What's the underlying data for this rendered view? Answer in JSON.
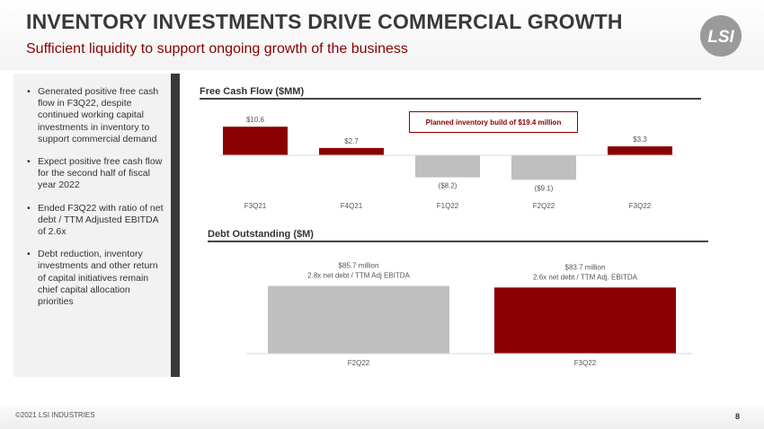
{
  "header": {
    "title": "INVENTORY INVESTMENTS DRIVE COMMERCIAL GROWTH",
    "subtitle": "Sufficient liquidity to support ongoing growth of the business",
    "logo_text": "LSI"
  },
  "bullets": [
    "Generated positive free cash flow in F3Q22, despite continued working capital investments in inventory to support commercial demand",
    "Expect positive free cash flow for the second half of fiscal year 2022",
    "Ended F3Q22 with ratio of net debt / TTM Adjusted EBITDA of 2.6x",
    "Debt reduction, inventory investments and other return of capital initiatives remain chief capital allocation priorities"
  ],
  "fcf_section": {
    "title": "Free Cash Flow ($MM)",
    "callout": "Planned inventory build of $19.4 million"
  },
  "debt_section": {
    "title": "Debt Outstanding ($M)"
  },
  "chart_data": [
    {
      "type": "bar",
      "title": "Free Cash Flow ($MM)",
      "categories": [
        "F3Q21",
        "F4Q21",
        "F1Q22",
        "F2Q22",
        "F3Q22"
      ],
      "values": [
        10.6,
        2.7,
        -8.2,
        -9.1,
        3.3
      ],
      "data_labels": [
        "$10.6",
        "$2.7",
        "($8.2)",
        "($9.1)",
        "$3.3"
      ],
      "colors": [
        "#8b0000",
        "#8b0000",
        "#bfbfbf",
        "#bfbfbf",
        "#8b0000"
      ],
      "ylim": [
        -9.1,
        10.6
      ]
    },
    {
      "type": "bar",
      "title": "Debt Outstanding ($M)",
      "categories": [
        "F2Q22",
        "F3Q22"
      ],
      "values": [
        85.7,
        83.7
      ],
      "data_labels": [
        [
          "$85.7 million",
          "2.8x net debt / TTM Adj EBITDA"
        ],
        [
          "$83.7  million",
          "2.6x net debt / TTM Adj. EBITDA"
        ]
      ],
      "colors": [
        "#bfbfbf",
        "#8b0000"
      ],
      "ylim": [
        0,
        85.7
      ]
    }
  ],
  "footer": {
    "copyright": "©2021 LSI INDUSTRIES",
    "page": "8"
  }
}
